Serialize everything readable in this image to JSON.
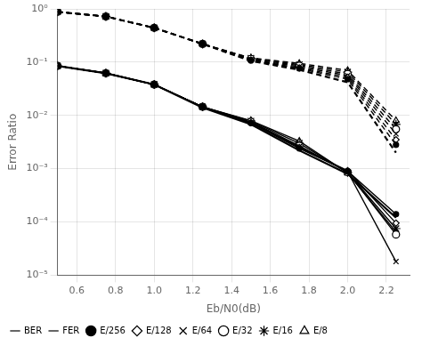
{
  "chart_data": {
    "type": "line",
    "xlabel": "Eb/N0(dB)",
    "ylabel": "Error Ratio",
    "log": "y",
    "grid": true,
    "legend": "lower left",
    "xlim": [
      0.5,
      2.32
    ],
    "xticks": [
      0.6,
      0.8,
      {
        "value": 1,
        "label": "1.0"
      },
      1.2,
      1.4,
      1.6,
      1.8,
      {
        "value": 2,
        "label": "2.0"
      },
      2.2
    ],
    "ylim": [
      1e-05,
      1
    ],
    "yticks": [
      {
        "value": 1e-05,
        "label": "10⁻⁵"
      },
      {
        "value": 0.0001,
        "label": "10⁻⁴"
      },
      {
        "value": 0.001,
        "label": "10⁻³"
      },
      {
        "value": 0.01,
        "label": "10⁻²"
      },
      {
        "value": 0.1,
        "label": "10⁻¹"
      },
      {
        "value": 1,
        "label": "10⁰"
      }
    ],
    "x": [
      0.5,
      0.75,
      1.0,
      1.25,
      1.5,
      1.75,
      2.0,
      2.25
    ],
    "series": [
      {
        "name": "BER",
        "line_style": "solid",
        "color": "#000000",
        "values": [
          0.085,
          0.062,
          0.038,
          0.014,
          0.0068,
          0.0022,
          0.0008,
          0.00012
        ]
      },
      {
        "name": "FER",
        "line_style": "dashed",
        "color": "#000000",
        "values": [
          0.88,
          0.72,
          0.44,
          0.22,
          0.105,
          0.072,
          0.042,
          0.002
        ]
      },
      {
        "name": "E/256",
        "line_style": "solid",
        "marker": "filled_circle",
        "color": "#000000",
        "values": [
          0.085,
          0.062,
          0.038,
          0.0145,
          0.0072,
          0.0024,
          0.0009,
          0.00014
        ]
      },
      {
        "line_style": "dashed",
        "marker": "filled_circle",
        "color": "#000000",
        "values": [
          0.88,
          0.72,
          0.44,
          0.22,
          0.108,
          0.076,
          0.048,
          0.0028
        ]
      },
      {
        "name": "E/128",
        "line_style": "solid",
        "marker": "open_diamond",
        "color": "#000000",
        "values": [
          0.085,
          0.062,
          0.038,
          0.0145,
          0.0073,
          0.0025,
          0.00092,
          9.5e-05
        ]
      },
      {
        "line_style": "dashed",
        "marker": "open_diamond",
        "color": "#000000",
        "values": [
          0.88,
          0.72,
          0.44,
          0.22,
          0.11,
          0.078,
          0.052,
          0.0035
        ]
      },
      {
        "name": "E/64",
        "line_style": "solid",
        "marker": "x",
        "color": "#000000",
        "values": [
          0.085,
          0.062,
          0.038,
          0.0145,
          0.0074,
          0.0026,
          0.00088,
          1.8e-05
        ]
      },
      {
        "line_style": "dashed",
        "marker": "x",
        "color": "#000000",
        "values": [
          0.88,
          0.72,
          0.44,
          0.22,
          0.112,
          0.082,
          0.056,
          0.0045
        ]
      },
      {
        "name": "E/32",
        "line_style": "solid",
        "marker": "open_circle",
        "color": "#000000",
        "values": [
          0.085,
          0.062,
          0.038,
          0.0145,
          0.0076,
          0.0027,
          0.00086,
          5.8e-05
        ]
      },
      {
        "line_style": "dashed",
        "marker": "open_circle",
        "color": "#000000",
        "values": [
          0.88,
          0.72,
          0.44,
          0.22,
          0.115,
          0.086,
          0.06,
          0.0055
        ]
      },
      {
        "name": "E/16",
        "line_style": "solid",
        "marker": "filled_star",
        "color": "#000000",
        "values": [
          0.085,
          0.062,
          0.038,
          0.0145,
          0.0078,
          0.003,
          0.00085,
          7.5e-05
        ]
      },
      {
        "line_style": "dashed",
        "marker": "filled_star",
        "color": "#000000",
        "values": [
          0.88,
          0.72,
          0.44,
          0.22,
          0.118,
          0.09,
          0.065,
          0.0068
        ]
      },
      {
        "name": "E/8",
        "line_style": "solid",
        "marker": "open_triangle",
        "color": "#000000",
        "values": [
          0.085,
          0.062,
          0.038,
          0.0145,
          0.008,
          0.0033,
          0.00083,
          6.5e-05
        ]
      },
      {
        "line_style": "dashed",
        "marker": "open_triangle",
        "color": "#000000",
        "values": [
          0.88,
          0.72,
          0.44,
          0.22,
          0.12,
          0.095,
          0.07,
          0.008
        ]
      }
    ]
  }
}
